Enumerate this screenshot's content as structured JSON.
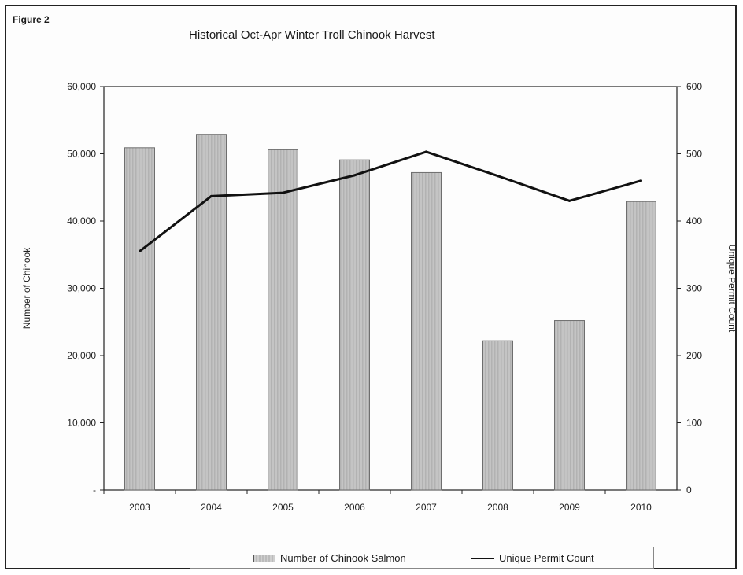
{
  "figure_label": "Figure 2",
  "chart_data": {
    "type": "bar",
    "title": "Historical Oct-Apr Winter Troll Chinook Harvest",
    "categories": [
      "2003",
      "2004",
      "2005",
      "2006",
      "2007",
      "2008",
      "2009",
      "2010"
    ],
    "series": [
      {
        "name": "Number of Chinook Salmon",
        "type": "bar",
        "axis": "left",
        "values": [
          50900,
          52900,
          50600,
          49100,
          47200,
          22200,
          25200,
          42900
        ]
      },
      {
        "name": "Unique Permit Count",
        "type": "line",
        "axis": "right",
        "values": [
          355,
          437,
          442,
          468,
          503,
          467,
          430,
          460
        ]
      }
    ],
    "ylabel": "Number of Chinook",
    "ylabel_right": "Unique Permit Count",
    "ylim": [
      0,
      60000
    ],
    "ylim_right": [
      0,
      600
    ],
    "yticks": [
      "-",
      "10,000",
      "20,000",
      "30,000",
      "40,000",
      "50,000",
      "60,000"
    ],
    "yticks_right": [
      "0",
      "100",
      "200",
      "300",
      "400",
      "500",
      "600"
    ],
    "grid": false,
    "legend_position": "bottom",
    "colors": {
      "bar_fill": "#c4c4c4",
      "bar_stroke": "#6e6e6e",
      "line": "#111111"
    }
  }
}
